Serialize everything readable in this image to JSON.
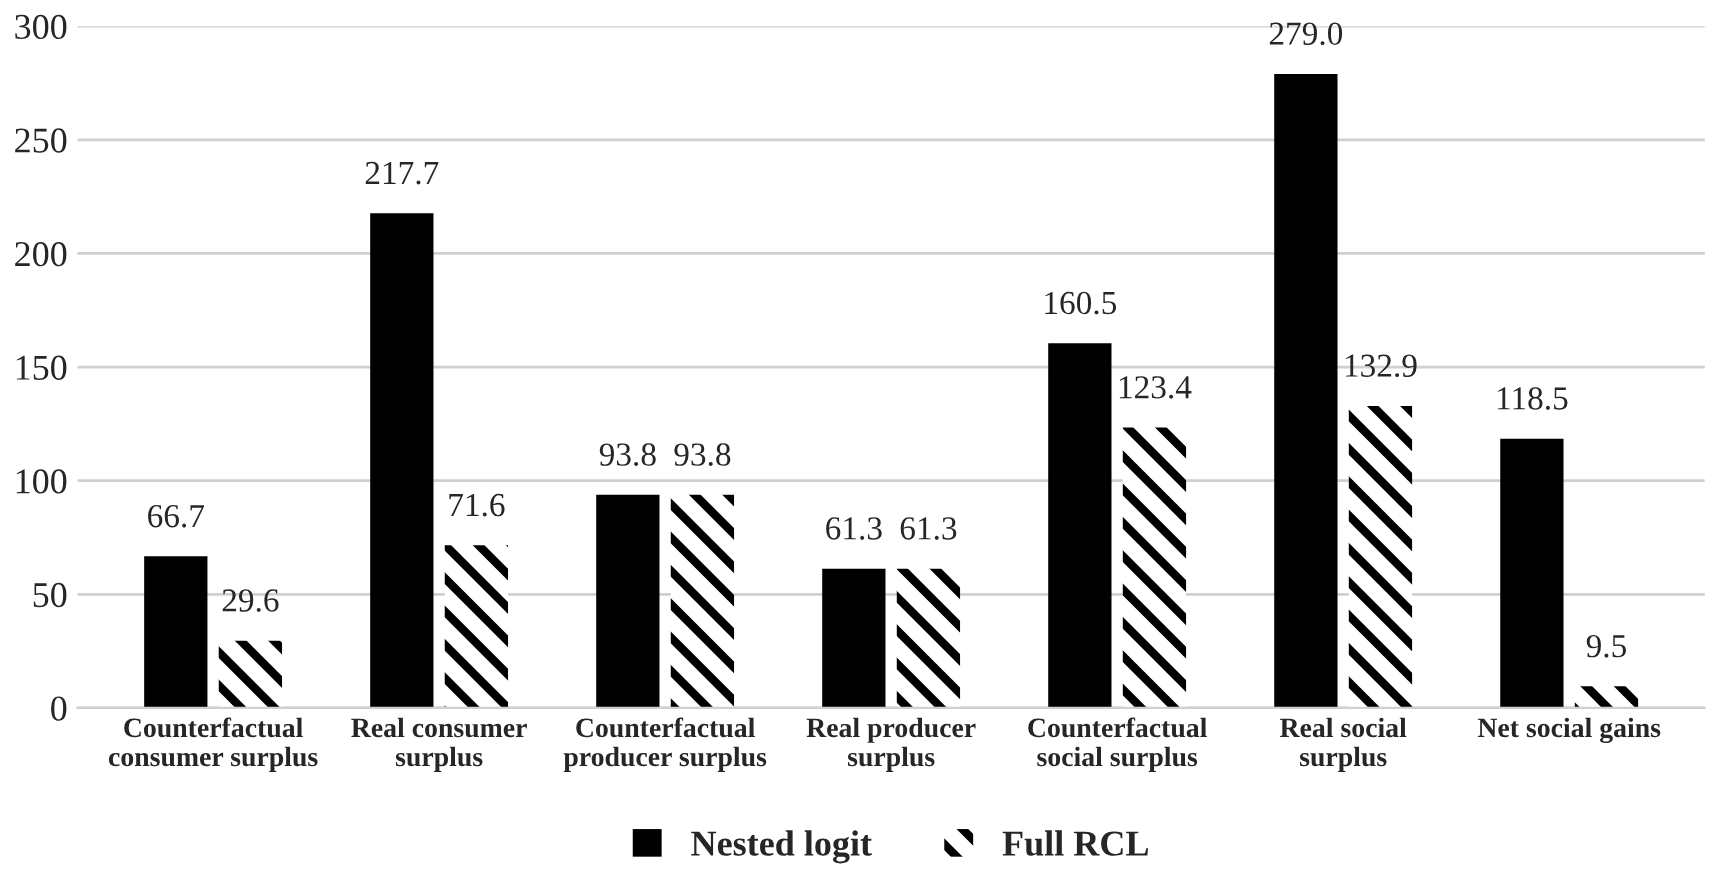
{
  "chart_data": {
    "type": "bar",
    "categories": [
      "Counterfactual\nconsumer surplus",
      "Real consumer\nsurplus",
      "Counterfactual\nproducer surplus",
      "Real producer\nsurplus",
      "Counterfactual\nsocial surplus",
      "Real social\nsurplus",
      "Net social gains"
    ],
    "series": [
      {
        "name": "Nested logit",
        "color": "#000000",
        "values": [
          66.7,
          217.7,
          93.8,
          61.3,
          160.5,
          279.0,
          118.5
        ],
        "value_labels": [
          "66.7",
          "217.7",
          "93.8",
          "61.3",
          "160.5",
          "279.0",
          "118.5"
        ]
      },
      {
        "name": "Full RCL",
        "color": "#000000",
        "values": [
          29.6,
          71.6,
          93.8,
          61.3,
          123.4,
          132.9,
          9.5
        ],
        "value_labels": [
          "29.6",
          "71.6",
          "93.8",
          "61.3",
          "123.4",
          "132.9",
          "9.5"
        ]
      }
    ],
    "ylim": [
      0,
      300
    ],
    "yticks": [
      0,
      50,
      100,
      150,
      200,
      250,
      300
    ],
    "grid": "y",
    "legend": "bottom"
  }
}
